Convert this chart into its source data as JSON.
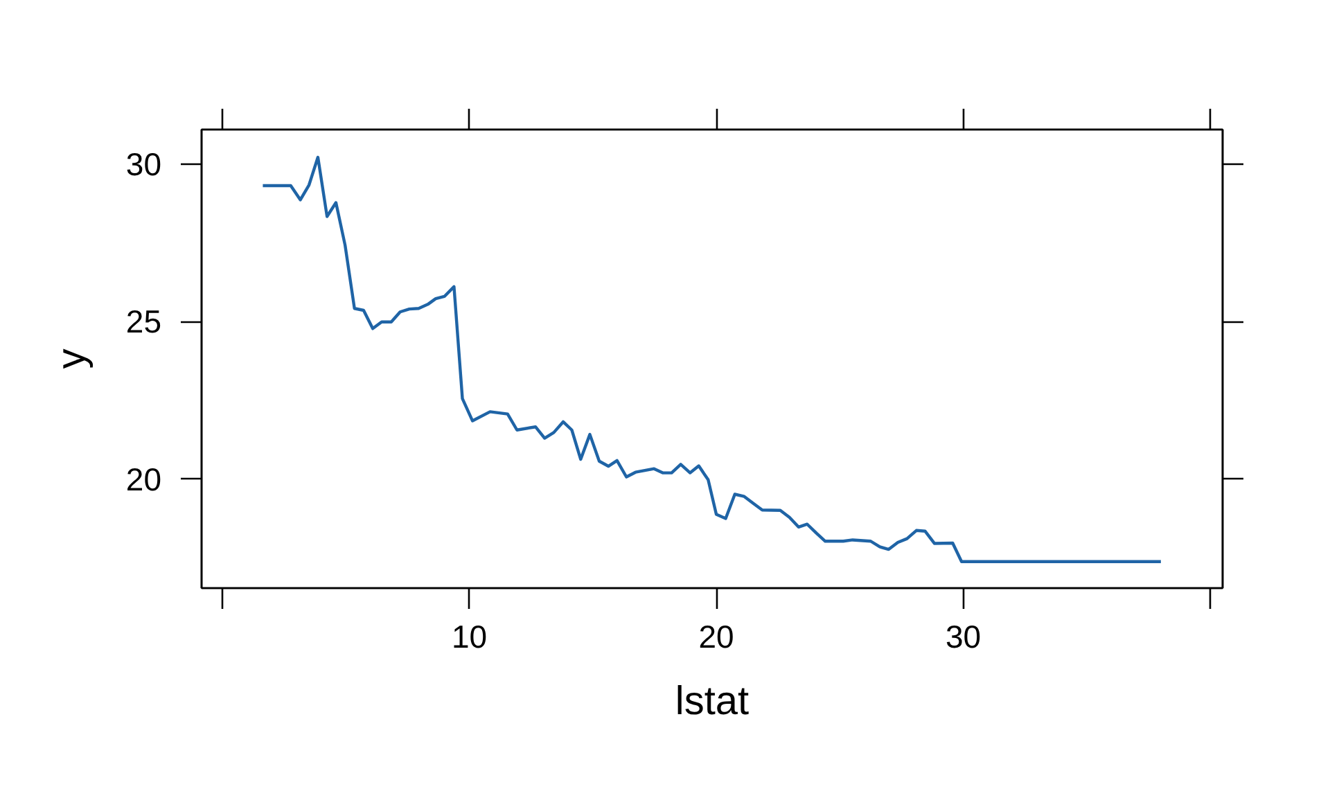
{
  "chart_data": {
    "type": "line",
    "xlabel": "lstat",
    "ylabel": "y",
    "color": "#1f64a6",
    "x": [
      1.64,
      2.77,
      3.16,
      3.51,
      3.87,
      4.24,
      4.6,
      4.97,
      5.35,
      5.72,
      6.09,
      6.45,
      6.84,
      7.2,
      7.57,
      7.95,
      8.32,
      8.64,
      8.99,
      9.38,
      9.72,
      10.13,
      10.84,
      11.55,
      11.93,
      12.68,
      13.05,
      13.42,
      13.8,
      14.15,
      14.51,
      14.88,
      15.26,
      15.63,
      15.98,
      16.36,
      16.73,
      17.48,
      17.83,
      18.19,
      18.56,
      18.94,
      19.29,
      19.67,
      20.0,
      20.38,
      20.75,
      21.13,
      21.5,
      21.86,
      22.59,
      22.96,
      23.33,
      23.68,
      24.06,
      24.41,
      25.14,
      25.52,
      26.25,
      26.62,
      26.98,
      27.35,
      27.72,
      28.1,
      28.45,
      28.83,
      29.57,
      29.93,
      38.0
    ],
    "values": [
      29.32,
      29.32,
      28.87,
      29.34,
      30.22,
      28.34,
      28.78,
      27.43,
      25.42,
      25.36,
      24.78,
      24.99,
      24.99,
      25.31,
      25.4,
      25.42,
      25.55,
      25.73,
      25.8,
      26.11,
      22.56,
      21.85,
      22.14,
      22.07,
      21.56,
      21.66,
      21.3,
      21.48,
      21.82,
      21.56,
      20.63,
      21.42,
      20.57,
      20.41,
      20.59,
      20.07,
      20.22,
      20.33,
      20.2,
      20.2,
      20.47,
      20.2,
      20.42,
      19.98,
      18.88,
      18.75,
      19.52,
      19.45,
      19.23,
      19.02,
      19.01,
      18.79,
      18.48,
      18.57,
      18.28,
      18.03,
      18.03,
      18.07,
      18.03,
      17.85,
      17.77,
      17.99,
      18.11,
      18.37,
      18.35,
      17.96,
      17.97,
      17.38,
      17.38
    ],
    "xlim": [
      -0.84,
      40.5
    ],
    "ylim": [
      16.54,
      31.1
    ],
    "xticks": [
      {
        "value": 0,
        "label": null
      },
      10,
      20,
      30,
      {
        "value": 40,
        "label": null
      }
    ],
    "yticks": [
      20,
      25,
      30
    ]
  }
}
